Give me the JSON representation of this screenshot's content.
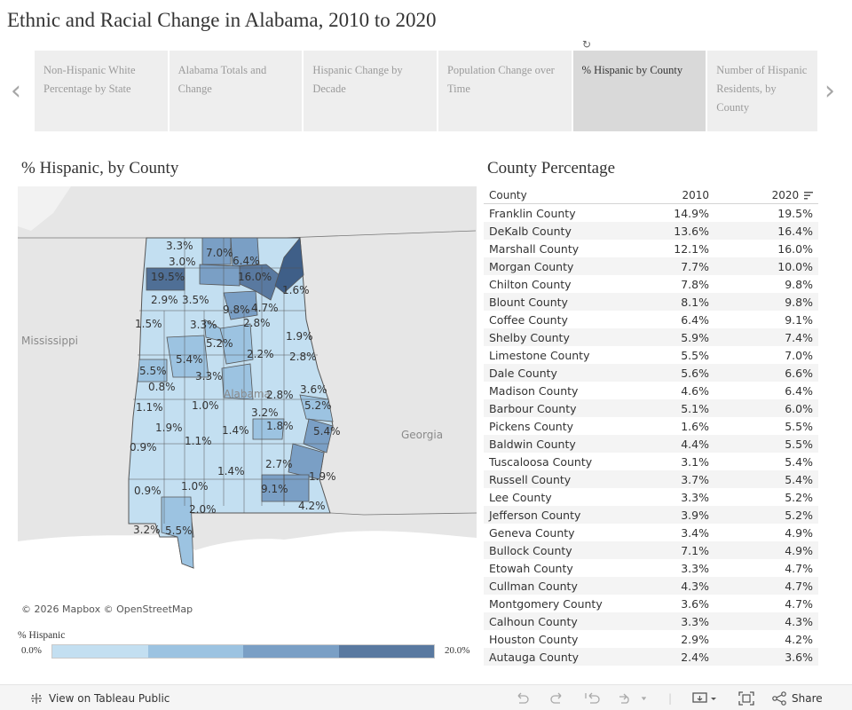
{
  "title": "Ethnic and Racial Change in Alabama, 2010 to 2020",
  "nav": {
    "prev_icon": "‹",
    "next_icon": "›",
    "loading_icon": "↻"
  },
  "story_points": [
    {
      "label": "Non-Hispanic White Percentage by State",
      "active": false
    },
    {
      "label": "Alabama Totals and Change",
      "active": false
    },
    {
      "label": "Hispanic Change by Decade",
      "active": false
    },
    {
      "label": "Population Change over Time",
      "active": false
    },
    {
      "label": "% Hispanic by County",
      "active": true
    },
    {
      "label": "Number of Hispanic Residents, by County",
      "active": false
    }
  ],
  "map": {
    "title": "% Hispanic, by County",
    "states": {
      "mississippi": "Mississippi",
      "georgia": "Georgia",
      "alabama": "Alabama"
    },
    "attribution": "© 2026 Mapbox  © OpenStreetMap",
    "labels": [
      "3.3%",
      "7.0%",
      "6.4%",
      "3.0%",
      "19.5%",
      "16.0%",
      "1.6%",
      "2.9%",
      "3.5%",
      "9.8%",
      "4.7%",
      "1.5%",
      "3.3%",
      "2.8%",
      "1.9%",
      "5.2%",
      "5.4%",
      "2.2%",
      "2.8%",
      "5.5%",
      "3.3%",
      "0.8%",
      "2.8%",
      "3.6%",
      "5.2%",
      "1.1%",
      "1.0%",
      "3.2%",
      "1.9%",
      "1.4%",
      "1.8%",
      "5.4%",
      "1.1%",
      "0.9%",
      "2.7%",
      "1.4%",
      "1.9%",
      "1.0%",
      "9.1%",
      "0.9%",
      "4.2%",
      "2.0%",
      "3.2%",
      "5.5%"
    ]
  },
  "legend": {
    "title": "% Hispanic",
    "min": "0.0%",
    "max": "20.0%",
    "colors": [
      "#c3dff1",
      "#9cc3e1",
      "#7a9fc5",
      "#5979a0"
    ]
  },
  "table": {
    "title": "County Percentage",
    "headers": {
      "county": "County",
      "y2010": "2010",
      "y2020": "2020"
    },
    "rows": [
      [
        "Franklin County",
        "14.9%",
        "19.5%"
      ],
      [
        "DeKalb County",
        "13.6%",
        "16.4%"
      ],
      [
        "Marshall County",
        "12.1%",
        "16.0%"
      ],
      [
        "Morgan County",
        "7.7%",
        "10.0%"
      ],
      [
        "Chilton County",
        "7.8%",
        "9.8%"
      ],
      [
        "Blount County",
        "8.1%",
        "9.8%"
      ],
      [
        "Coffee County",
        "6.4%",
        "9.1%"
      ],
      [
        "Shelby County",
        "5.9%",
        "7.4%"
      ],
      [
        "Limestone County",
        "5.5%",
        "7.0%"
      ],
      [
        "Dale County",
        "5.6%",
        "6.6%"
      ],
      [
        "Madison County",
        "4.6%",
        "6.4%"
      ],
      [
        "Barbour County",
        "5.1%",
        "6.0%"
      ],
      [
        "Pickens County",
        "1.6%",
        "5.5%"
      ],
      [
        "Baldwin County",
        "4.4%",
        "5.5%"
      ],
      [
        "Tuscaloosa County",
        "3.1%",
        "5.4%"
      ],
      [
        "Russell County",
        "3.7%",
        "5.4%"
      ],
      [
        "Lee County",
        "3.3%",
        "5.2%"
      ],
      [
        "Jefferson County",
        "3.9%",
        "5.2%"
      ],
      [
        "Geneva County",
        "3.4%",
        "4.9%"
      ],
      [
        "Bullock County",
        "7.1%",
        "4.9%"
      ],
      [
        "Etowah County",
        "3.3%",
        "4.7%"
      ],
      [
        "Cullman County",
        "4.3%",
        "4.7%"
      ],
      [
        "Montgomery County",
        "3.6%",
        "4.7%"
      ],
      [
        "Calhoun County",
        "3.3%",
        "4.3%"
      ],
      [
        "Houston County",
        "2.9%",
        "4.2%"
      ],
      [
        "Autauga County",
        "2.4%",
        "3.6%"
      ]
    ]
  },
  "toolbar": {
    "view_label": "View on Tableau Public",
    "share_label": "Share",
    "icons": [
      "undo-icon",
      "redo-icon",
      "revert-icon",
      "refresh-icon",
      "download-icon",
      "fullscreen-icon",
      "share-icon"
    ]
  }
}
